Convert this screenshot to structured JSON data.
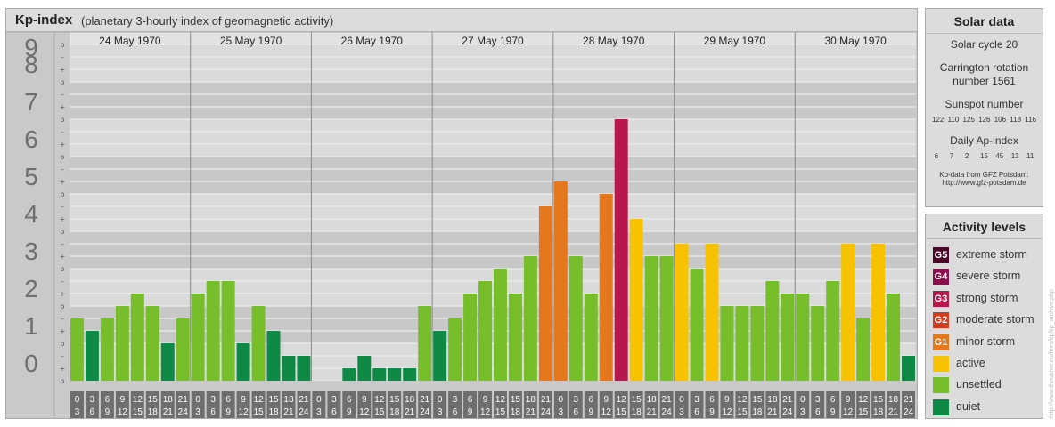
{
  "header": {
    "title": "Kp-index",
    "subtitle": "(planetary 3-hourly index of geomagnetic activity)"
  },
  "chart_data": {
    "type": "bar",
    "ylim": [
      0,
      9
    ],
    "y_ticks": [
      "0",
      "1",
      "2",
      "3",
      "4",
      "5",
      "6",
      "7",
      "8",
      "9"
    ],
    "y_minor_marks": [
      "o",
      "+",
      "–"
    ],
    "days": [
      "24 May 1970",
      "25 May 1970",
      "26 May 1970",
      "27 May 1970",
      "28 May 1970",
      "29 May 1970",
      "30 May 1970"
    ],
    "hour_labels": [
      [
        "0",
        "3"
      ],
      [
        "3",
        "6"
      ],
      [
        "6",
        "9"
      ],
      [
        "9",
        "12"
      ],
      [
        "12",
        "15"
      ],
      [
        "15",
        "18"
      ],
      [
        "18",
        "21"
      ],
      [
        "21",
        "24"
      ]
    ],
    "values": [
      1.667,
      1.333,
      1.667,
      2.0,
      2.333,
      2.0,
      1.0,
      1.667,
      2.333,
      2.667,
      2.667,
      1.0,
      2.0,
      1.333,
      0.667,
      0.667,
      0.0,
      0.0,
      0.333,
      0.667,
      0.333,
      0.333,
      0.333,
      2.0,
      1.333,
      1.667,
      2.333,
      2.667,
      3.0,
      2.333,
      3.333,
      4.667,
      5.333,
      3.333,
      2.333,
      5.0,
      7.0,
      4.333,
      3.333,
      3.333,
      3.667,
      3.0,
      3.667,
      2.0,
      2.0,
      2.0,
      2.667,
      2.333,
      2.333,
      2.0,
      2.667,
      3.667,
      1.667,
      3.667,
      2.333,
      0.667
    ],
    "colors": {
      "quiet": "#0e8a46",
      "unsettled": "#76bf2b",
      "active": "#f7c200",
      "G1": "#e5771d",
      "G2": "#d43b1f",
      "G3": "#b8174e",
      "G4": "#8b0e4e",
      "G5": "#4b0628"
    }
  },
  "solar": {
    "heading": "Solar data",
    "cycle": "Solar cycle 20",
    "carrington_line1": "Carrington rotation",
    "carrington_line2": "number 1561",
    "sunspot_label": "Sunspot number",
    "sunspot_values": "122 110 125 126 106 118 116",
    "ap_label": "Daily Ap-index",
    "ap_values": "6   7   2   15  45  13  11",
    "source_line1": "Kp-data from GFZ Potsdam:",
    "source_line2": "http://www.gfz-potsdam.de"
  },
  "levels": {
    "heading": "Activity levels",
    "items": [
      {
        "code": "G5",
        "label": "extreme storm",
        "color": "#4b0628"
      },
      {
        "code": "G4",
        "label": "severe storm",
        "color": "#8b0e4e"
      },
      {
        "code": "G3",
        "label": "strong storm",
        "color": "#b8174e"
      },
      {
        "code": "G2",
        "label": "moderate storm",
        "color": "#d43b1f"
      },
      {
        "code": "G1",
        "label": "minor storm",
        "color": "#e5771d"
      },
      {
        "code": "",
        "label": "active",
        "color": "#f7c200"
      },
      {
        "code": "",
        "label": "unsettled",
        "color": "#76bf2b"
      },
      {
        "code": "",
        "label": "quiet",
        "color": "#0e8a46"
      }
    ]
  },
  "credit": "http://www.theusner.eu/fees/kp/kp_archive.php"
}
